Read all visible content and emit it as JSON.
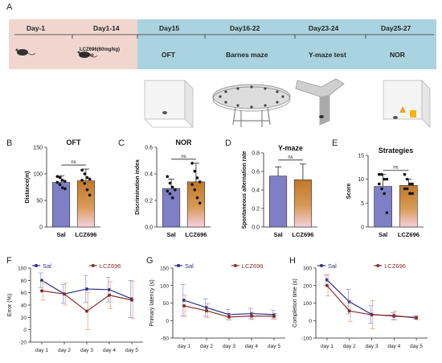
{
  "panel_letters": [
    "A",
    "B",
    "C",
    "D",
    "E",
    "F",
    "G",
    "H"
  ],
  "timeline": {
    "days": [
      "Day-1",
      "Day1-14",
      "Day15",
      "Day16-22",
      "Day23-24",
      "Day25-27"
    ],
    "tests": [
      "OFT",
      "Barnes maze",
      "Y-maze test",
      "NOR"
    ],
    "treatment_line1": "LCZ696(60mg/kg)",
    "treatment_line2": "Saline",
    "colors": {
      "pre_phase": "#f1d6cf",
      "test_phase": "#a9d3de"
    }
  },
  "chart_data": [
    {
      "id": "B",
      "type": "bar",
      "title": "OFT",
      "ylabel": "Distance(m)",
      "categories": [
        "Sal",
        "LCZ696"
      ],
      "values": [
        84,
        87
      ],
      "errors": [
        12,
        22
      ],
      "ylim": [
        0,
        150
      ],
      "yticks": [
        0,
        50,
        100,
        150
      ],
      "significance": "ns",
      "points": [
        [
          95,
          93,
          88,
          86,
          84,
          80,
          74,
          72
        ],
        [
          107,
          100,
          93,
          90,
          88,
          82,
          70,
          60
        ]
      ]
    },
    {
      "id": "C",
      "type": "bar",
      "title": "NOR",
      "ylabel": "Discrimination index",
      "categories": [
        "Sal",
        "LCZ696"
      ],
      "values": [
        0.29,
        0.34
      ],
      "errors": [
        0.07,
        0.14
      ],
      "ylim": [
        0,
        0.6
      ],
      "yticks": [
        0.0,
        0.2,
        0.4,
        0.6
      ],
      "significance": "ns",
      "points": [
        [
          0.38,
          0.33,
          0.3,
          0.28,
          0.27,
          0.25,
          0.22
        ],
        [
          0.48,
          0.42,
          0.37,
          0.34,
          0.32,
          0.28,
          0.22,
          0.18
        ]
      ]
    },
    {
      "id": "D",
      "type": "bar",
      "title": "Y-maze",
      "ylabel": "Spontaneous alternation rate",
      "categories": [
        "Sal",
        "LCZ696"
      ],
      "values": [
        0.55,
        0.51
      ],
      "errors": [
        0.1,
        0.17
      ],
      "ylim": [
        0,
        0.8
      ],
      "yticks": [
        0.0,
        0.2,
        0.4,
        0.6,
        0.8
      ],
      "significance": "ns",
      "points": [
        [],
        []
      ]
    },
    {
      "id": "E",
      "type": "bar",
      "title": "Strategies",
      "ylabel": "Score",
      "categories": [
        "Sal",
        "LCZ696"
      ],
      "values": [
        8.5,
        8.7
      ],
      "errors": [
        2.5,
        1.3
      ],
      "ylim": [
        0,
        15
      ],
      "yticks": [
        0,
        5,
        10,
        15
      ],
      "significance": "ns",
      "points": [
        [
          11,
          11,
          10,
          10,
          9,
          8,
          7,
          3
        ],
        [
          11,
          10,
          9,
          9,
          8,
          8,
          7,
          7
        ]
      ]
    },
    {
      "id": "F",
      "type": "line",
      "ylabel": "Error (%)",
      "x": [
        "day 1",
        "day 2",
        "day 3",
        "day 4",
        "day 5"
      ],
      "ylim": [
        -20,
        100
      ],
      "yticks": [
        -20,
        0,
        20,
        40,
        60,
        80,
        100
      ],
      "series": [
        {
          "name": "Sal",
          "values": [
            80,
            58,
            66,
            65,
            50
          ],
          "errors": [
            12,
            15,
            22,
            20,
            30
          ]
        },
        {
          "name": "LCZ696",
          "values": [
            63,
            58,
            30,
            56,
            48
          ],
          "errors": [
            15,
            18,
            30,
            22,
            30
          ]
        }
      ]
    },
    {
      "id": "G",
      "type": "line",
      "ylabel": "Primary latency (s)",
      "x": [
        "day 1",
        "day 2",
        "day 3",
        "day 4",
        "day 5"
      ],
      "ylim": [
        -50,
        150
      ],
      "yticks": [
        -50,
        0,
        50,
        100,
        150
      ],
      "series": [
        {
          "name": "Sal",
          "values": [
            58,
            37,
            17,
            20,
            17
          ],
          "errors": [
            45,
            25,
            15,
            15,
            12
          ]
        },
        {
          "name": "LCZ696",
          "values": [
            42,
            28,
            10,
            13,
            12
          ],
          "errors": [
            30,
            20,
            8,
            10,
            8
          ]
        }
      ]
    },
    {
      "id": "H",
      "type": "line",
      "ylabel": "Completion time (s)",
      "x": [
        "day 1",
        "day 2",
        "day 3",
        "day 4",
        "day 5"
      ],
      "ylim": [
        -100,
        300
      ],
      "yticks": [
        -100,
        0,
        100,
        200,
        300
      ],
      "series": [
        {
          "name": "Sal",
          "values": [
            232,
            108,
            35,
            25,
            18
          ],
          "errors": [
            30,
            70,
            50,
            20,
            10
          ]
        },
        {
          "name": "LCZ696",
          "values": [
            200,
            55,
            33,
            28,
            15
          ],
          "errors": [
            60,
            60,
            80,
            25,
            10
          ]
        }
      ]
    }
  ],
  "colors": {
    "sal": "#7f7fc6",
    "lcz": "#c0782a",
    "sal_line": "#2a2f8c",
    "lcz_line": "#8a2e2e",
    "lcz_bar_top": "#c0782a",
    "lcz_bar_bottom": "#f6d0de"
  }
}
